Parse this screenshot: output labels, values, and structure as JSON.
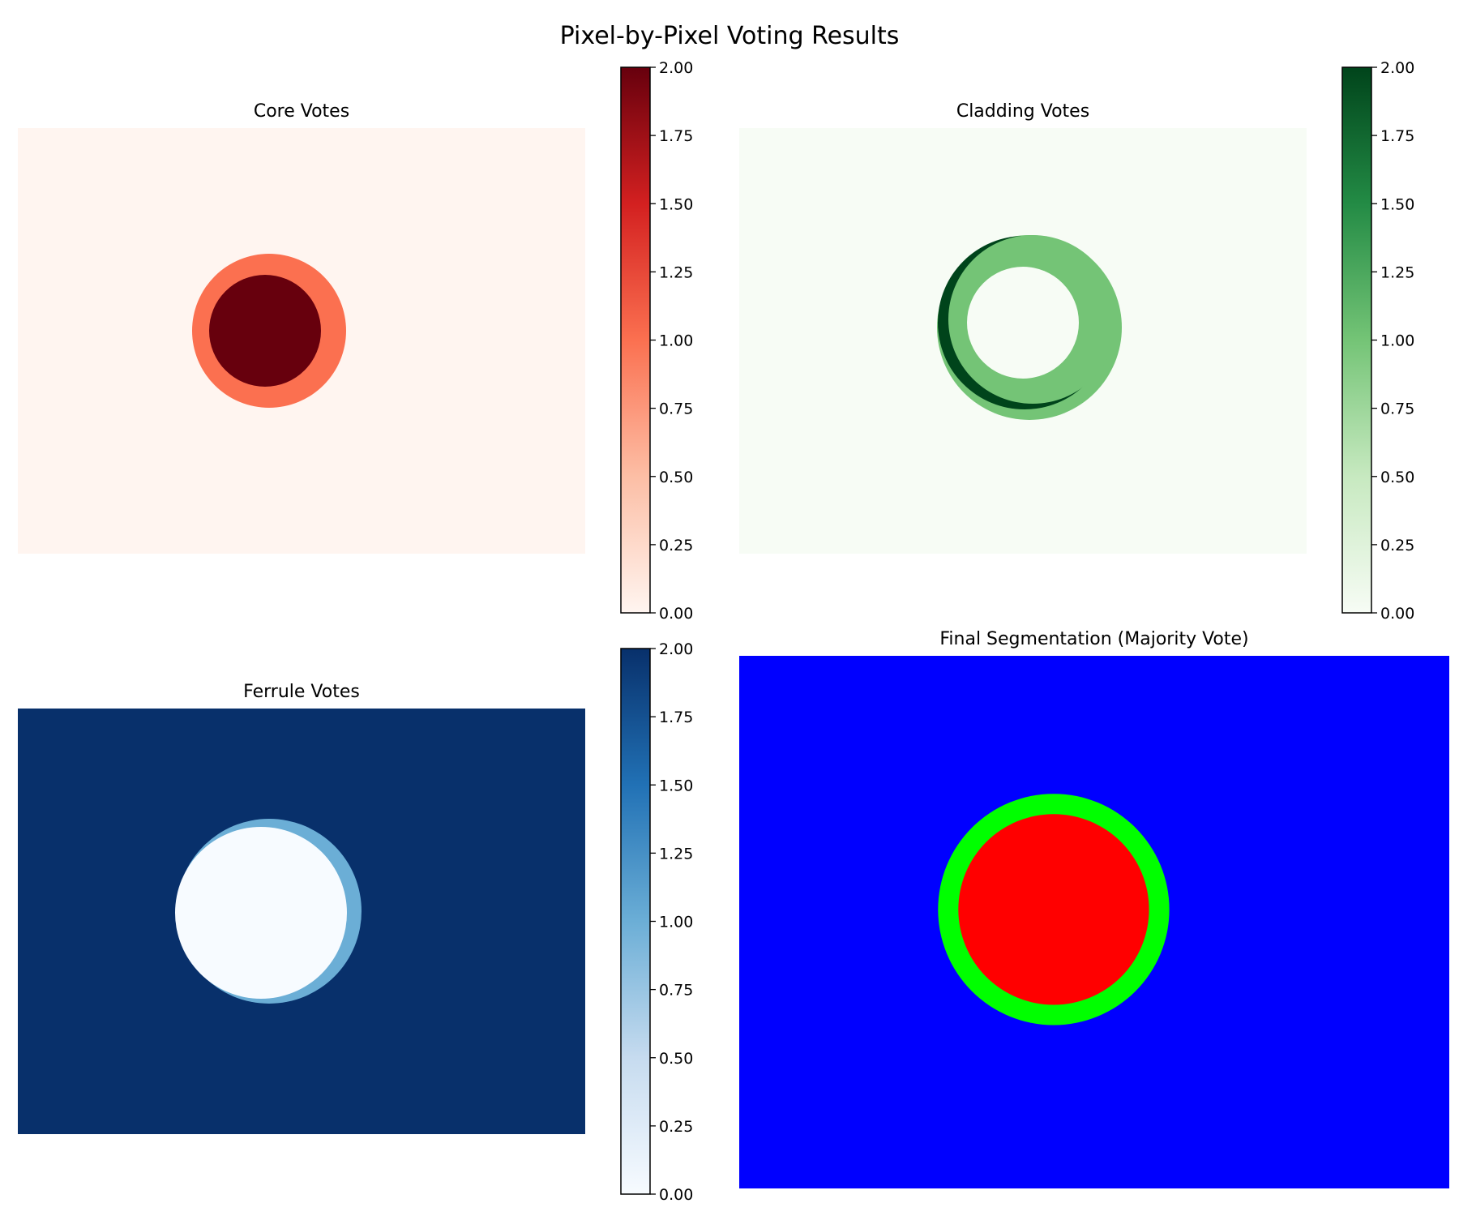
{
  "figure": {
    "title": "Pixel-by-Pixel Voting Results"
  },
  "chart_data": [
    {
      "type": "heatmap",
      "title": "Core Votes",
      "colormap": "Reds",
      "colormap_stops": [
        "#fff5f0",
        "#fcbea5",
        "#fb7050",
        "#d32020",
        "#67000d"
      ],
      "value_range": [
        0,
        2
      ],
      "colorbar_ticks": [
        "0.00",
        "0.25",
        "0.50",
        "0.75",
        "1.00",
        "1.25",
        "1.50",
        "1.75",
        "2.00"
      ],
      "axes": "off",
      "regions": [
        {
          "shape": "background",
          "value": 0
        },
        {
          "shape": "disk",
          "center": [
            310,
            250
          ],
          "radius": 95,
          "value": 1
        },
        {
          "shape": "disk",
          "center": [
            305,
            250
          ],
          "radius": 69,
          "value": 2
        }
      ]
    },
    {
      "type": "heatmap",
      "title": "Cladding Votes",
      "colormap": "Greens",
      "colormap_stops": [
        "#f7fcf5",
        "#c7e9c0",
        "#74c476",
        "#238b45",
        "#00441b"
      ],
      "value_range": [
        0,
        2
      ],
      "colorbar_ticks": [
        "0.00",
        "0.25",
        "0.50",
        "0.75",
        "1.00",
        "1.25",
        "1.50",
        "1.75",
        "2.00"
      ],
      "axes": "off",
      "regions": [
        {
          "shape": "background",
          "value": 0
        },
        {
          "shape": "disk",
          "center": [
            358,
            246
          ],
          "radius": 114,
          "value": 1
        },
        {
          "shape": "disk",
          "center": [
            352,
            240
          ],
          "radius": 107,
          "value": 2
        },
        {
          "shape": "disk",
          "center": [
            362,
            236
          ],
          "radius": 104,
          "value": 1
        },
        {
          "shape": "disk",
          "center": [
            350,
            240
          ],
          "radius": 69,
          "value": 0
        }
      ]
    },
    {
      "type": "heatmap",
      "title": "Ferrule Votes",
      "colormap": "Blues",
      "colormap_stops": [
        "#f7fbff",
        "#c6dbef",
        "#6baed6",
        "#2171b5",
        "#08306b"
      ],
      "value_range": [
        0,
        2
      ],
      "colorbar_ticks": [
        "0.00",
        "0.25",
        "0.50",
        "0.75",
        "1.00",
        "1.25",
        "1.50",
        "1.75",
        "2.00"
      ],
      "axes": "off",
      "regions": [
        {
          "shape": "background",
          "value": 2
        },
        {
          "shape": "disk",
          "center": [
            310,
            250
          ],
          "radius": 114,
          "value": 1
        },
        {
          "shape": "disk",
          "center": [
            300,
            252
          ],
          "radius": 106,
          "value": 0
        }
      ]
    },
    {
      "type": "heatmap",
      "title": "Final Segmentation (Majority Vote)",
      "colormap": "discrete",
      "classes": [
        {
          "color": "#0000ff",
          "value": 3
        },
        {
          "color": "#00ff00",
          "value": 2
        },
        {
          "color": "#ff0000",
          "value": 1
        }
      ],
      "axes": "off",
      "regions": [
        {
          "shape": "background",
          "value": 3
        },
        {
          "shape": "disk",
          "center": [
            310,
            250
          ],
          "radius": 114,
          "value": 2
        },
        {
          "shape": "disk",
          "center": [
            310,
            250
          ],
          "radius": 94,
          "value": 1
        }
      ]
    }
  ]
}
